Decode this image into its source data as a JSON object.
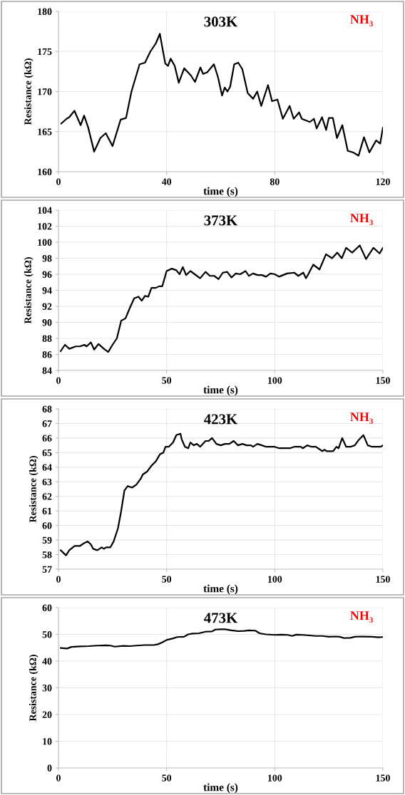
{
  "chart_data": [
    {
      "type": "line",
      "title": "303K",
      "xlabel": "time (s)",
      "ylabel": "Resistance (kΩ)",
      "annotations": [
        "NH₃"
      ],
      "grid": true,
      "xlim": [
        0,
        120
      ],
      "xticks": [
        0,
        40,
        80,
        120
      ],
      "ylim": [
        160,
        180
      ],
      "yticks": [
        160,
        165,
        170,
        175,
        180
      ],
      "x": [
        1,
        3,
        4,
        5.9,
        8.2,
        9.5,
        11,
        13.2,
        15.5,
        17.5,
        20,
        23,
        25,
        27,
        30,
        32,
        34,
        36,
        37.5,
        39.5,
        40.5,
        41.5,
        43,
        44.5,
        46.5,
        49,
        50.5,
        52.5,
        53.5,
        55,
        57.5,
        59,
        60.5,
        61.5,
        62.5,
        63.5,
        65,
        66.5,
        68,
        70,
        72,
        73.5,
        75,
        77.5,
        79,
        81,
        83,
        85.5,
        87,
        89,
        90,
        93,
        94.5,
        95.5,
        97.5,
        99,
        100,
        101.5,
        103,
        105,
        107,
        109,
        111,
        113,
        115,
        117.5,
        119,
        120
      ],
      "series": [
        {
          "color": "#000000",
          "values": [
            166.0,
            166.6,
            166.8,
            167.6,
            165.8,
            167.0,
            165.5,
            162.5,
            164.2,
            164.8,
            163.2,
            166.5,
            166.7,
            170.0,
            173.4,
            173.6,
            175.0,
            176.0,
            177.2,
            173.5,
            173.2,
            174.1,
            173.2,
            171.1,
            172.9,
            172.0,
            171.2,
            173.0,
            172.2,
            172.4,
            173.4,
            171.8,
            169.5,
            170.5,
            170.0,
            170.6,
            173.4,
            173.6,
            172.8,
            169.8,
            169.1,
            170.0,
            168.2,
            170.8,
            168.8,
            169.0,
            166.6,
            168.2,
            166.6,
            167.4,
            166.6,
            166.2,
            166.6,
            165.4,
            166.8,
            165.2,
            166.7,
            166.7,
            164.2,
            165.8,
            162.6,
            162.4,
            162.0,
            164.3,
            162.4,
            163.9,
            163.5,
            165.5
          ]
        }
      ]
    },
    {
      "type": "line",
      "title": "373K",
      "xlabel": "time (s)",
      "ylabel": "Resistance (kΩ)",
      "annotations": [
        "NH₃"
      ],
      "grid": true,
      "xlim": [
        0,
        150
      ],
      "xticks": [
        0,
        50,
        100,
        150
      ],
      "ylim": [
        84,
        104
      ],
      "yticks": [
        84,
        86,
        88,
        90,
        92,
        94,
        96,
        98,
        100,
        102,
        104
      ],
      "x": [
        1,
        3,
        5,
        8,
        10,
        12,
        13,
        15,
        16.5,
        18.5,
        21,
        23,
        25,
        27,
        29,
        31,
        33,
        35,
        37,
        38.5,
        40,
        41.5,
        43,
        45,
        46.5,
        48,
        50,
        52.4,
        54.5,
        56,
        57.5,
        59,
        61,
        63,
        65.5,
        68,
        70,
        72,
        74,
        76,
        78,
        80,
        82,
        84,
        86.5,
        88,
        90,
        92,
        94,
        96,
        98,
        100,
        102,
        105.7,
        109,
        110.9,
        113.2,
        114.4,
        115.5,
        117.8,
        120.7,
        123.7,
        126.5,
        128.9,
        131,
        133,
        135.8,
        139.3,
        142.2,
        145.6,
        148.5,
        150
      ],
      "series": [
        {
          "color": "#000000",
          "values": [
            86.4,
            87.2,
            86.7,
            87.0,
            87.0,
            87.2,
            87.0,
            87.5,
            86.6,
            87.3,
            86.7,
            86.3,
            87.2,
            88.0,
            90.2,
            90.5,
            91.8,
            93.0,
            93.2,
            92.7,
            93.3,
            93.2,
            94.3,
            94.3,
            94.5,
            94.5,
            96.4,
            96.7,
            96.5,
            96.0,
            96.9,
            95.9,
            96.4,
            96.0,
            95.5,
            96.3,
            95.8,
            95.8,
            95.4,
            96.2,
            96.3,
            95.6,
            96.1,
            96.0,
            96.4,
            95.8,
            96.1,
            95.9,
            95.9,
            95.7,
            96.1,
            96.0,
            95.7,
            96.1,
            96.2,
            95.8,
            96.2,
            95.5,
            96.0,
            97.2,
            96.6,
            98.5,
            98.0,
            98.7,
            98.0,
            99.3,
            98.7,
            99.6,
            97.9,
            99.3,
            98.6,
            99.3
          ]
        }
      ]
    },
    {
      "type": "line",
      "title": "423K",
      "xlabel": "time (s)",
      "ylabel": "Resistance (kΩ)",
      "annotations": [
        "NH₃"
      ],
      "grid": true,
      "xlim": [
        0,
        150
      ],
      "xticks": [
        0,
        50,
        100,
        150
      ],
      "ylim": [
        57,
        68
      ],
      "yticks": [
        57,
        58,
        59,
        60,
        61,
        62,
        63,
        64,
        65,
        66,
        67,
        68
      ],
      "x": [
        1,
        3.5,
        5,
        7.5,
        10,
        12,
        13.5,
        15,
        16,
        18,
        20,
        21,
        22,
        24,
        25.5,
        27.5,
        29,
        30.5,
        32,
        34,
        36,
        38,
        39,
        41,
        43,
        45,
        47,
        48.5,
        49.5,
        51,
        53,
        54.5,
        56.4,
        57,
        58.5,
        60,
        61,
        62.5,
        64,
        65.5,
        68,
        69.5,
        71,
        73,
        75,
        77,
        79,
        81,
        83,
        85,
        87,
        89,
        90,
        92,
        94,
        96,
        100,
        102,
        107,
        109,
        112,
        113,
        115,
        117,
        119,
        121,
        122,
        123,
        124,
        127,
        128.5,
        129.5,
        131.2,
        133,
        135,
        137,
        139,
        141,
        143,
        145,
        147,
        149,
        150
      ],
      "series": [
        {
          "color": "#000000",
          "values": [
            58.3,
            57.95,
            58.3,
            58.6,
            58.6,
            58.8,
            58.9,
            58.7,
            58.4,
            58.3,
            58.5,
            58.4,
            58.5,
            58.5,
            58.9,
            59.8,
            61.0,
            62.4,
            62.7,
            62.6,
            62.8,
            63.2,
            63.5,
            63.7,
            64.1,
            64.4,
            64.9,
            65.0,
            65.4,
            65.4,
            65.7,
            66.2,
            66.3,
            65.9,
            65.4,
            65.3,
            65.7,
            65.5,
            65.6,
            65.4,
            65.8,
            65.8,
            66.0,
            65.6,
            65.5,
            65.6,
            65.6,
            65.8,
            65.5,
            65.6,
            65.5,
            65.5,
            65.4,
            65.6,
            65.5,
            65.4,
            65.4,
            65.3,
            65.3,
            65.4,
            65.4,
            65.3,
            65.5,
            65.4,
            65.4,
            65.2,
            65.1,
            65.2,
            65.1,
            65.1,
            65.4,
            65.3,
            66.0,
            65.4,
            65.4,
            65.5,
            65.9,
            66.2,
            65.5,
            65.4,
            65.4,
            65.4,
            65.5
          ]
        }
      ]
    },
    {
      "type": "line",
      "title": "473K",
      "xlabel": "time (s)",
      "ylabel": "Resistance (kΩ)",
      "annotations": [
        "NH₃"
      ],
      "grid": true,
      "xlim": [
        0,
        150
      ],
      "xticks": [
        0,
        50,
        100,
        150
      ],
      "ylim": [
        0,
        60
      ],
      "yticks": [
        0,
        10,
        20,
        30,
        40,
        50,
        60
      ],
      "x": [
        1,
        4,
        6,
        10,
        14,
        18,
        22,
        24,
        26,
        30,
        33,
        36,
        40,
        44,
        46,
        48,
        50,
        53,
        55,
        58,
        60,
        62,
        65,
        68,
        71,
        72.5,
        75,
        77,
        80,
        83,
        86,
        88,
        91,
        93,
        96,
        100,
        103,
        106,
        108,
        110,
        113,
        116,
        119,
        122,
        125,
        128,
        130,
        132,
        135,
        137,
        140,
        145,
        148,
        150
      ],
      "series": [
        {
          "color": "#000000",
          "values": [
            44.9,
            44.7,
            45.3,
            45.5,
            45.6,
            45.8,
            45.9,
            45.8,
            45.4,
            45.7,
            45.6,
            45.8,
            46.0,
            46.0,
            46.3,
            47.0,
            47.9,
            48.5,
            49.0,
            49.1,
            50.0,
            50.3,
            50.4,
            51.0,
            51.1,
            51.8,
            51.9,
            51.9,
            51.5,
            51.2,
            51.3,
            51.5,
            51.4,
            50.4,
            50.0,
            49.8,
            49.9,
            49.8,
            49.4,
            49.9,
            49.8,
            49.6,
            49.4,
            49.4,
            49.1,
            49.2,
            49.1,
            48.6,
            48.7,
            49.1,
            49.2,
            49.1,
            48.9,
            49.0
          ]
        }
      ]
    }
  ]
}
